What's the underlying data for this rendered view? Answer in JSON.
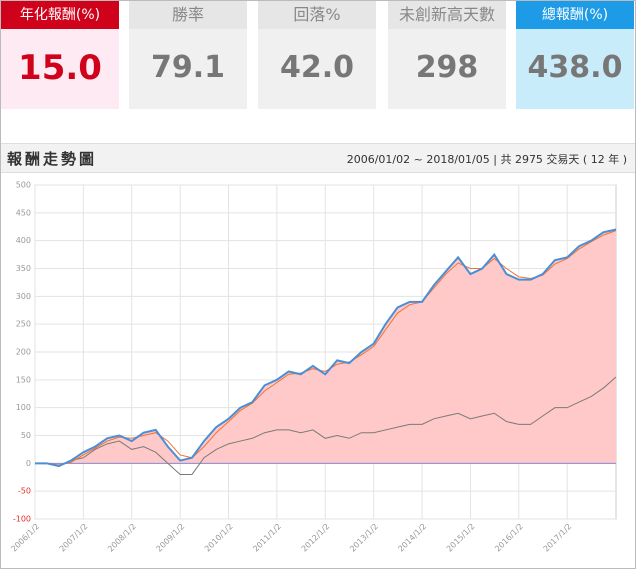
{
  "stats": [
    {
      "label": "年化報酬(%)",
      "value": "15.0"
    },
    {
      "label": "勝率",
      "value": "79.1"
    },
    {
      "label": "回落%",
      "value": "42.0"
    },
    {
      "label": "未創新高天數",
      "value": "298"
    },
    {
      "label": "總報酬(%)",
      "value": "438.0"
    }
  ],
  "chart_data": {
    "type": "line",
    "title": "報酬走勢圖",
    "subtitle": "2006/01/02 ~ 2018/01/05 | 共 2975 交易天 ( 12 年 )",
    "x": [
      "2006/1/2",
      "2006/4/1",
      "2006/7/1",
      "2006/10/1",
      "2007/1/2",
      "2007/4/1",
      "2007/7/1",
      "2007/10/1",
      "2008/1/2",
      "2008/4/1",
      "2008/7/1",
      "2008/10/1",
      "2009/1/2",
      "2009/4/1",
      "2009/7/1",
      "2009/10/1",
      "2010/1/2",
      "2010/4/1",
      "2010/7/1",
      "2010/10/1",
      "2011/1/2",
      "2011/4/1",
      "2011/7/1",
      "2011/10/1",
      "2012/1/2",
      "2012/4/1",
      "2012/7/1",
      "2012/10/1",
      "2013/1/2",
      "2013/4/1",
      "2013/7/1",
      "2013/10/1",
      "2014/1/2",
      "2014/4/1",
      "2014/7/1",
      "2014/10/1",
      "2015/1/2",
      "2015/4/1",
      "2015/7/1",
      "2015/10/1",
      "2016/1/2",
      "2016/4/1",
      "2016/7/1",
      "2016/10/1",
      "2017/1/2",
      "2017/4/1",
      "2017/7/1",
      "2017/10/1",
      "2018/1/5"
    ],
    "series": [
      {
        "color": "#4a8fd6",
        "area_color": "#ffc9c9",
        "values": [
          0,
          0,
          -5,
          5,
          20,
          30,
          45,
          50,
          40,
          55,
          60,
          30,
          5,
          10,
          40,
          65,
          80,
          100,
          110,
          140,
          150,
          165,
          160,
          175,
          160,
          185,
          180,
          200,
          215,
          250,
          280,
          290,
          290,
          320,
          345,
          370,
          340,
          350,
          375,
          340,
          330,
          330,
          340,
          365,
          370,
          390,
          400,
          415,
          420
        ]
      },
      {
        "color": "#f07232",
        "values": [
          0,
          0,
          -3,
          2,
          15,
          27,
          40,
          47,
          45,
          50,
          55,
          40,
          15,
          10,
          30,
          55,
          75,
          95,
          108,
          130,
          145,
          160,
          162,
          170,
          165,
          178,
          182,
          195,
          210,
          240,
          270,
          285,
          290,
          315,
          340,
          360,
          350,
          350,
          368,
          350,
          335,
          332,
          338,
          358,
          368,
          385,
          398,
          410,
          418
        ]
      },
      {
        "color": "#7a7a7a",
        "values": [
          0,
          0,
          -5,
          5,
          10,
          25,
          35,
          40,
          25,
          30,
          20,
          0,
          -20,
          -20,
          10,
          25,
          35,
          40,
          45,
          55,
          60,
          60,
          55,
          60,
          45,
          50,
          45,
          55,
          55,
          60,
          65,
          70,
          70,
          80,
          85,
          90,
          80,
          85,
          90,
          75,
          70,
          70,
          85,
          100,
          100,
          110,
          120,
          135,
          155
        ]
      }
    ],
    "xlim": [
      "2006/1/2",
      "2018/1/5"
    ],
    "xticks": [
      "2006/1/2",
      "2007/1/2",
      "2008/1/2",
      "2009/1/2",
      "2010/1/2",
      "2011/1/2",
      "2012/1/2",
      "2013/1/2",
      "2014/1/2",
      "2015/1/2",
      "2016/1/2",
      "2017/1/2"
    ],
    "ylim": [
      -100,
      500
    ],
    "yticks": [
      -100,
      -50,
      0,
      50,
      100,
      150,
      200,
      250,
      300,
      350,
      400,
      450,
      500
    ],
    "grid": true
  }
}
